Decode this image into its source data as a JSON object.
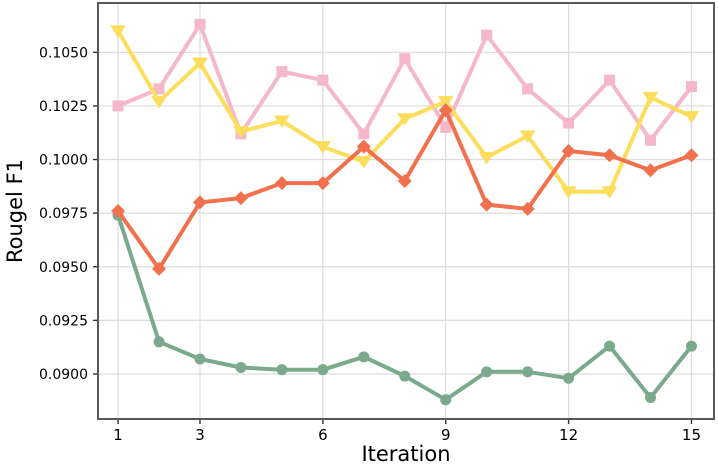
{
  "chart_data": {
    "type": "line",
    "title": "",
    "xlabel": "Iteration",
    "ylabel": "Rougel F1",
    "x": [
      1,
      2,
      3,
      4,
      5,
      6,
      7,
      8,
      9,
      10,
      11,
      12,
      13,
      14,
      15
    ],
    "xticks": [
      1,
      3,
      6,
      9,
      12,
      15
    ],
    "yticks": [
      0.105,
      0.1025,
      0.1,
      0.0975,
      0.095,
      0.0925,
      0.09
    ],
    "ytick_labels": [
      "0.1050",
      "0.1025",
      "0.1000",
      "0.0975",
      "0.0950",
      "0.0925",
      "0.0900"
    ],
    "xlim": [
      0.51,
      15.55
    ],
    "ylim": [
      0.0879,
      0.1073
    ],
    "grid": true,
    "legend_position": "none",
    "series": [
      {
        "name": "pink-squares",
        "color": "#F5B8CB",
        "marker": "square",
        "values": [
          0.1025,
          0.1033,
          0.1063,
          0.1012,
          0.1041,
          0.1037,
          0.1012,
          0.1047,
          0.1015,
          0.1058,
          0.1033,
          0.1017,
          0.1037,
          0.1009,
          0.1034
        ]
      },
      {
        "name": "yellow-triangles",
        "color": "#FCDD5C",
        "marker": "triangle-down",
        "values": [
          0.106,
          0.1027,
          0.1045,
          0.1013,
          0.1018,
          0.1006,
          0.0999,
          0.1019,
          0.1027,
          0.1001,
          0.1011,
          0.0985,
          0.0985,
          0.1029,
          0.102
        ]
      },
      {
        "name": "green-circles",
        "color": "#7AA98C",
        "marker": "circle",
        "values": [
          0.0974,
          0.0915,
          0.0907,
          0.0903,
          0.0902,
          0.0902,
          0.0908,
          0.0899,
          0.0888,
          0.0901,
          0.0901,
          0.0898,
          0.0913,
          0.0889,
          0.0913
        ]
      },
      {
        "name": "orange-diamonds",
        "color": "#F1704D",
        "marker": "diamond",
        "values": [
          0.0976,
          0.0949,
          0.098,
          0.0982,
          0.0989,
          0.0989,
          0.1006,
          0.099,
          0.1023,
          0.0979,
          0.0977,
          0.1004,
          0.1002,
          0.0995,
          0.1002
        ]
      }
    ],
    "style": {
      "grid_color": "#DCDCDC",
      "spine_color": "#58585A",
      "tick_color": "#333333",
      "line_width": 4,
      "marker_size": 12
    }
  }
}
